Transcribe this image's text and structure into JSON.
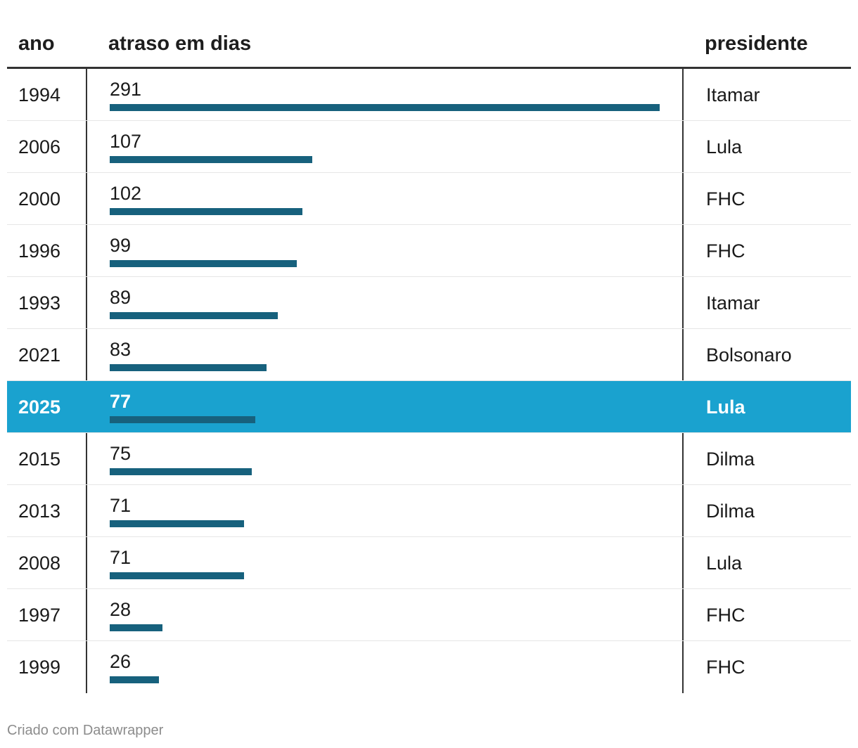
{
  "headers": {
    "ano": "ano",
    "atraso": "atraso em dias",
    "presidente": "presidente"
  },
  "colors": {
    "bar": "#17617d",
    "highlight_row": "#1aa2cf"
  },
  "chart_data": {
    "type": "table",
    "columns": [
      "ano",
      "atraso em dias",
      "presidente"
    ],
    "x_max": 291,
    "rows": [
      {
        "ano": "1994",
        "value": 291,
        "value_label": "291",
        "presidente": "Itamar",
        "highlight": false
      },
      {
        "ano": "2006",
        "value": 107,
        "value_label": "107",
        "presidente": "Lula",
        "highlight": false
      },
      {
        "ano": "2000",
        "value": 102,
        "value_label": "102",
        "presidente": "FHC",
        "highlight": false
      },
      {
        "ano": "1996",
        "value": 99,
        "value_label": "99",
        "presidente": "FHC",
        "highlight": false
      },
      {
        "ano": "1993",
        "value": 89,
        "value_label": "89",
        "presidente": "Itamar",
        "highlight": false
      },
      {
        "ano": "2021",
        "value": 83,
        "value_label": "83",
        "presidente": "Bolsonaro",
        "highlight": false
      },
      {
        "ano": "2025",
        "value": 77,
        "value_label": "77",
        "presidente": "Lula",
        "highlight": true
      },
      {
        "ano": "2015",
        "value": 75,
        "value_label": "75",
        "presidente": "Dilma",
        "highlight": false
      },
      {
        "ano": "2013",
        "value": 71,
        "value_label": "71",
        "presidente": "Dilma",
        "highlight": false
      },
      {
        "ano": "2008",
        "value": 71,
        "value_label": "71",
        "presidente": "Lula",
        "highlight": false
      },
      {
        "ano": "1997",
        "value": 28,
        "value_label": "28",
        "presidente": "FHC",
        "highlight": false
      },
      {
        "ano": "1999",
        "value": 26,
        "value_label": "26",
        "presidente": "FHC",
        "highlight": false
      }
    ]
  },
  "footer": {
    "credit": "Criado com Datawrapper"
  }
}
